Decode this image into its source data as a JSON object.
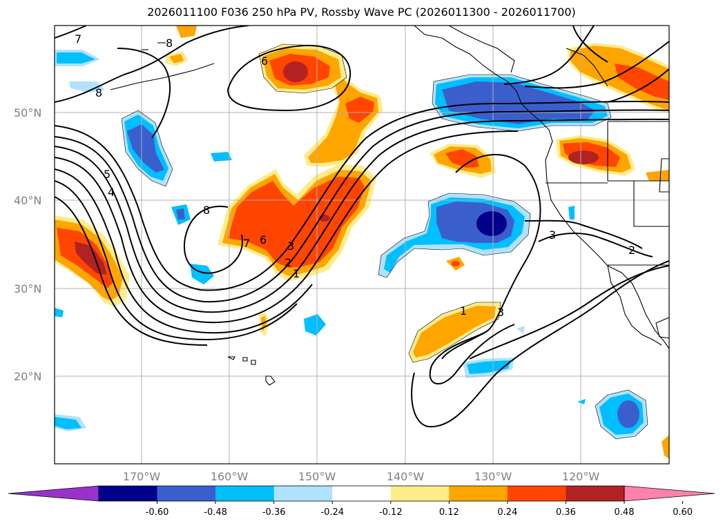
{
  "title": "2026011100 F036 250 hPa PV, Rossby Wave PC (2026011300 - 2026011700)",
  "lat_labels": [
    "50°N",
    "40°N",
    "30°N",
    "20°N"
  ],
  "lon_labels": [
    "170°W",
    "160°W",
    "150°W",
    "140°W",
    "130°W",
    "120°W"
  ],
  "colorbar": {
    "ticks": [
      "-0.60",
      "-0.48",
      "-0.36",
      "-0.24",
      "-0.12",
      "0.12",
      "0.24",
      "0.36",
      "0.48",
      "0.60"
    ],
    "colors": [
      "#9932cc",
      "#00008b",
      "#3a5fcd",
      "#00bfff",
      "#b0e2ff",
      "#ffffff",
      "#ffec8b",
      "#ffa500",
      "#ff4500",
      "#b22222",
      "#ff82ab"
    ]
  },
  "contour_labels": [
    "7",
    "8",
    "5",
    "4",
    "8",
    "6",
    "7",
    "6",
    "3",
    "2",
    "1",
    "8",
    "1",
    "3",
    "3",
    "2"
  ]
}
